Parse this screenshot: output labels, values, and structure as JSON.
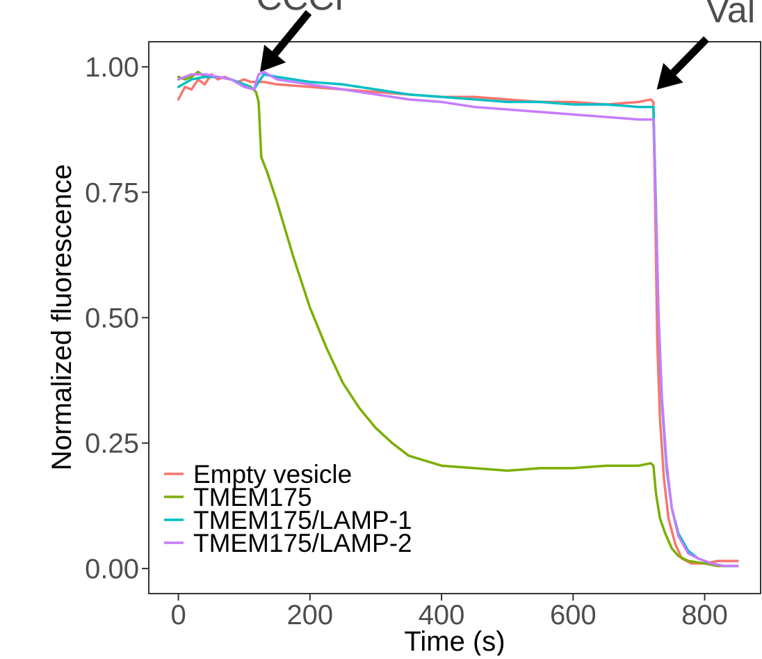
{
  "chart_data": {
    "type": "line",
    "title": "",
    "xlabel": "Time (s)",
    "ylabel": "Normalized fluorescence",
    "xlim": [
      -45,
      885
    ],
    "ylim": [
      -0.05,
      1.05
    ],
    "x_ticks": [
      0,
      200,
      400,
      600,
      800
    ],
    "x_tick_labels": [
      "0",
      "200",
      "400",
      "600",
      "800"
    ],
    "y_ticks": [
      0,
      0.25,
      0.5,
      0.75,
      1.0
    ],
    "y_tick_labels": [
      "0.00",
      "0.25",
      "0.50",
      "0.75",
      "1.00"
    ],
    "grid": false,
    "legend_position": "bottom-left",
    "annotations": [
      {
        "text": "CCCP",
        "x": 122,
        "y": 0.99
      },
      {
        "text": "Val",
        "x": 725,
        "y": 0.92
      }
    ],
    "series": [
      {
        "name": "Empty vesicle",
        "color": "#F8766D",
        "points": [
          [
            0,
            0.935
          ],
          [
            10,
            0.96
          ],
          [
            20,
            0.955
          ],
          [
            30,
            0.975
          ],
          [
            40,
            0.965
          ],
          [
            50,
            0.985
          ],
          [
            60,
            0.975
          ],
          [
            70,
            0.98
          ],
          [
            80,
            0.975
          ],
          [
            90,
            0.97
          ],
          [
            100,
            0.975
          ],
          [
            110,
            0.97
          ],
          [
            120,
            0.97
          ],
          [
            130,
            0.97
          ],
          [
            150,
            0.965
          ],
          [
            200,
            0.96
          ],
          [
            250,
            0.955
          ],
          [
            300,
            0.95
          ],
          [
            350,
            0.945
          ],
          [
            400,
            0.94
          ],
          [
            450,
            0.94
          ],
          [
            500,
            0.935
          ],
          [
            550,
            0.93
          ],
          [
            600,
            0.93
          ],
          [
            650,
            0.925
          ],
          [
            700,
            0.93
          ],
          [
            718,
            0.935
          ],
          [
            722,
            0.93
          ],
          [
            725,
            0.7
          ],
          [
            728,
            0.45
          ],
          [
            732,
            0.3
          ],
          [
            738,
            0.18
          ],
          [
            745,
            0.1
          ],
          [
            755,
            0.05
          ],
          [
            765,
            0.02
          ],
          [
            780,
            0.01
          ],
          [
            800,
            0.01
          ],
          [
            820,
            0.015
          ],
          [
            850,
            0.015
          ]
        ]
      },
      {
        "name": "TMEM175",
        "color": "#7CAE00",
        "points": [
          [
            0,
            0.98
          ],
          [
            10,
            0.975
          ],
          [
            20,
            0.98
          ],
          [
            30,
            0.99
          ],
          [
            40,
            0.98
          ],
          [
            60,
            0.98
          ],
          [
            80,
            0.975
          ],
          [
            100,
            0.965
          ],
          [
            110,
            0.96
          ],
          [
            118,
            0.95
          ],
          [
            122,
            0.93
          ],
          [
            126,
            0.82
          ],
          [
            135,
            0.79
          ],
          [
            150,
            0.73
          ],
          [
            175,
            0.62
          ],
          [
            200,
            0.52
          ],
          [
            225,
            0.44
          ],
          [
            250,
            0.37
          ],
          [
            275,
            0.32
          ],
          [
            300,
            0.28
          ],
          [
            325,
            0.25
          ],
          [
            350,
            0.225
          ],
          [
            375,
            0.215
          ],
          [
            400,
            0.205
          ],
          [
            450,
            0.2
          ],
          [
            500,
            0.195
          ],
          [
            550,
            0.2
          ],
          [
            600,
            0.2
          ],
          [
            650,
            0.205
          ],
          [
            700,
            0.205
          ],
          [
            718,
            0.21
          ],
          [
            722,
            0.205
          ],
          [
            726,
            0.15
          ],
          [
            732,
            0.1
          ],
          [
            740,
            0.07
          ],
          [
            750,
            0.04
          ],
          [
            760,
            0.025
          ],
          [
            775,
            0.015
          ],
          [
            800,
            0.01
          ],
          [
            820,
            0.005
          ],
          [
            850,
            0.005
          ]
        ]
      },
      {
        "name": "TMEM175/LAMP-1",
        "color": "#00BFC4",
        "points": [
          [
            0,
            0.96
          ],
          [
            20,
            0.975
          ],
          [
            40,
            0.98
          ],
          [
            60,
            0.98
          ],
          [
            80,
            0.975
          ],
          [
            100,
            0.965
          ],
          [
            115,
            0.955
          ],
          [
            122,
            0.97
          ],
          [
            130,
            0.985
          ],
          [
            150,
            0.98
          ],
          [
            200,
            0.97
          ],
          [
            250,
            0.965
          ],
          [
            300,
            0.955
          ],
          [
            350,
            0.945
          ],
          [
            400,
            0.94
          ],
          [
            450,
            0.935
          ],
          [
            500,
            0.93
          ],
          [
            550,
            0.93
          ],
          [
            600,
            0.925
          ],
          [
            650,
            0.925
          ],
          [
            700,
            0.92
          ],
          [
            718,
            0.92
          ],
          [
            722,
            0.92
          ],
          [
            726,
            0.72
          ],
          [
            730,
            0.5
          ],
          [
            735,
            0.33
          ],
          [
            742,
            0.2
          ],
          [
            750,
            0.12
          ],
          [
            760,
            0.07
          ],
          [
            775,
            0.035
          ],
          [
            790,
            0.02
          ],
          [
            810,
            0.01
          ],
          [
            830,
            0.005
          ],
          [
            850,
            0.005
          ]
        ]
      },
      {
        "name": "TMEM175/LAMP-2",
        "color": "#C77CFF",
        "points": [
          [
            0,
            0.975
          ],
          [
            20,
            0.985
          ],
          [
            40,
            0.985
          ],
          [
            60,
            0.98
          ],
          [
            80,
            0.975
          ],
          [
            100,
            0.96
          ],
          [
            115,
            0.955
          ],
          [
            122,
            0.985
          ],
          [
            130,
            0.99
          ],
          [
            150,
            0.975
          ],
          [
            200,
            0.965
          ],
          [
            250,
            0.955
          ],
          [
            300,
            0.945
          ],
          [
            350,
            0.935
          ],
          [
            400,
            0.93
          ],
          [
            450,
            0.92
          ],
          [
            500,
            0.915
          ],
          [
            550,
            0.91
          ],
          [
            600,
            0.905
          ],
          [
            650,
            0.9
          ],
          [
            700,
            0.895
          ],
          [
            718,
            0.895
          ],
          [
            722,
            0.895
          ],
          [
            726,
            0.7
          ],
          [
            730,
            0.5
          ],
          [
            735,
            0.34
          ],
          [
            742,
            0.21
          ],
          [
            750,
            0.12
          ],
          [
            760,
            0.065
          ],
          [
            775,
            0.03
          ],
          [
            790,
            0.02
          ],
          [
            810,
            0.01
          ],
          [
            830,
            0.005
          ],
          [
            850,
            0.005
          ]
        ]
      }
    ]
  }
}
